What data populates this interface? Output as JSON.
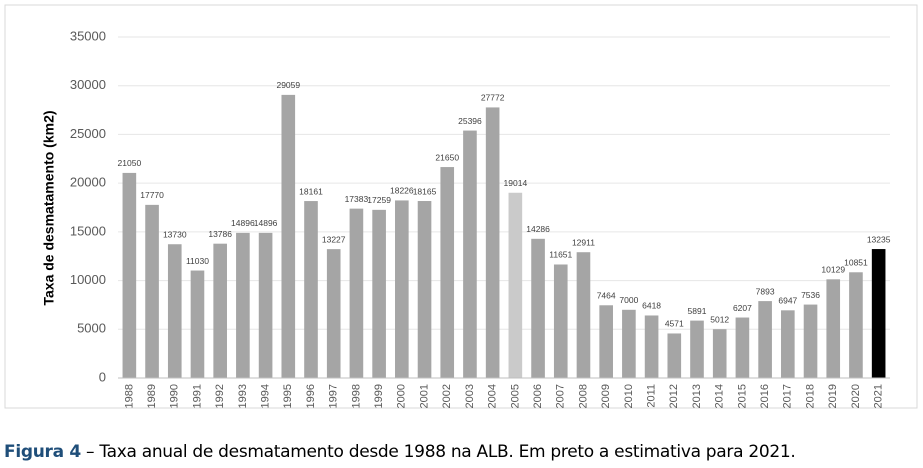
{
  "chart_data": {
    "type": "bar",
    "y_label": "Taxa de desmatamento (km2)",
    "categories": [
      "1988",
      "1989",
      "1990",
      "1991",
      "1992",
      "1993",
      "1994",
      "1995",
      "1996",
      "1997",
      "1998",
      "1999",
      "2000",
      "2001",
      "2002",
      "2003",
      "2004",
      "2005",
      "2006",
      "2007",
      "2008",
      "2009",
      "2010",
      "2011",
      "2012",
      "2013",
      "2014",
      "2015",
      "2016",
      "2017",
      "2018",
      "2019",
      "2020",
      "2021"
    ],
    "values": [
      21050,
      17770,
      13730,
      11030,
      13786,
      14896,
      14896,
      29059,
      18161,
      13227,
      17383,
      17259,
      18226,
      18165,
      21650,
      25396,
      27772,
      19014,
      14286,
      11651,
      12911,
      7464,
      7000,
      6418,
      4571,
      5891,
      5012,
      6207,
      7893,
      6947,
      7536,
      10129,
      10851,
      13235
    ],
    "colors": [
      "#a5a5a5",
      "#a5a5a5",
      "#a5a5a5",
      "#a5a5a5",
      "#a5a5a5",
      "#a5a5a5",
      "#a5a5a5",
      "#a5a5a5",
      "#a5a5a5",
      "#a5a5a5",
      "#a5a5a5",
      "#a5a5a5",
      "#a5a5a5",
      "#a5a5a5",
      "#a5a5a5",
      "#a5a5a5",
      "#a5a5a5",
      "#cacaca",
      "#a5a5a5",
      "#a5a5a5",
      "#a5a5a5",
      "#a5a5a5",
      "#a5a5a5",
      "#a5a5a5",
      "#a5a5a5",
      "#a5a5a5",
      "#a5a5a5",
      "#a5a5a5",
      "#a5a5a5",
      "#a5a5a5",
      "#a5a5a5",
      "#a5a5a5",
      "#a5a5a5",
      "#000000"
    ],
    "ylim": [
      0,
      35000
    ],
    "yticks": [
      0,
      5000,
      10000,
      15000,
      20000,
      25000,
      30000,
      35000
    ],
    "grid": true
  },
  "caption": {
    "label": "Figura 4",
    "text": "– Taxa anual de desmatamento desde 1988 na ALB. Em preto a estimativa para 2021."
  }
}
